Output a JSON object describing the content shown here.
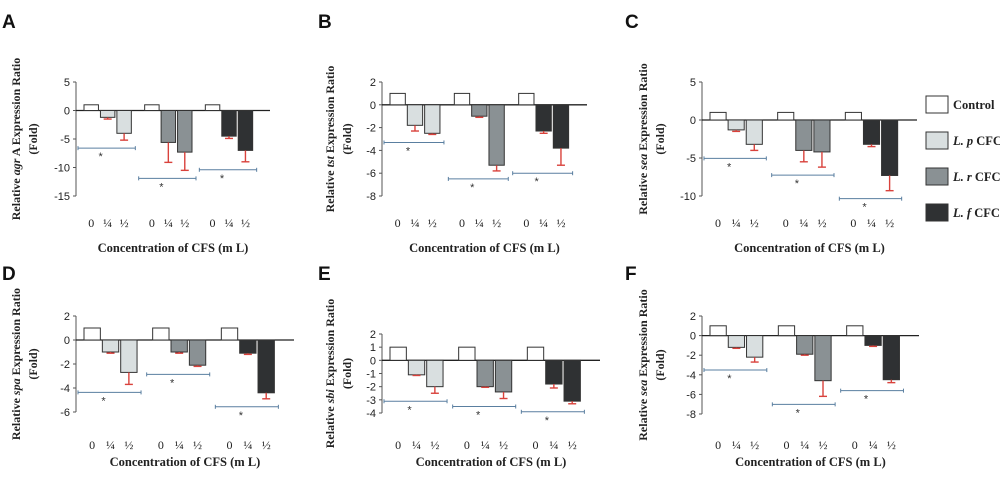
{
  "colors": {
    "Control": "#ffffff",
    "L. p CFC": "#d9dfe0",
    "L. r CFC": "#8a9194",
    "L. f CFC": "#2f3133",
    "error_bar": "#d9423c",
    "bracket": "#5a7fa0"
  },
  "legend": [
    {
      "label": "Control",
      "key": "Control"
    },
    {
      "label_italic": "L. p",
      "label_rest": " CFC",
      "key": "L. p CFC"
    },
    {
      "label_italic": "L. r",
      "label_rest": " CFC",
      "key": "L. r CFC"
    },
    {
      "label_italic": "L. f",
      "label_rest": " CFC",
      "key": "L. f CFC"
    }
  ],
  "chart_data": [
    {
      "type": "bar",
      "panel": "A",
      "ylabel_pre": "Relative ",
      "ylabel_gene": "agr",
      "ylabel_post": " A Expression Ratio",
      "ylabel_line2": "(Fold)",
      "xlabel": "Concentration of CFS (m L)",
      "ylim": [
        -15,
        5
      ],
      "yticks": [
        5,
        0,
        -5,
        -10,
        -15
      ],
      "x_tick_labels": [
        "0",
        "¼",
        "½"
      ],
      "groups": [
        {
          "series": "L. p CFC",
          "values": [
            1,
            -1.2,
            -4
          ],
          "errors": [
            0,
            0.3,
            1.2
          ]
        },
        {
          "series": "L. r CFC",
          "values": [
            1,
            -5.6,
            -7.3
          ],
          "errors": [
            0,
            3.5,
            3.2
          ]
        },
        {
          "series": "L. f CFC",
          "values": [
            1,
            -4.5,
            -7
          ],
          "errors": [
            0,
            0.4,
            2
          ]
        }
      ],
      "significance": [
        "*",
        "*",
        "*"
      ]
    },
    {
      "type": "bar",
      "panel": "B",
      "ylabel_pre": "Relative ",
      "ylabel_gene": "tst",
      "ylabel_post": " Expression Ratio",
      "ylabel_line2": "(Fold)",
      "xlabel": "Concentration of CFS (m L)",
      "ylim": [
        -8,
        2
      ],
      "yticks": [
        2,
        0,
        -2,
        -4,
        -6,
        -8
      ],
      "x_tick_labels": [
        "0",
        "¼",
        "½"
      ],
      "groups": [
        {
          "series": "L. p CFC",
          "values": [
            1,
            -1.8,
            -2.5
          ],
          "errors": [
            0,
            0.5,
            0.1
          ]
        },
        {
          "series": "L. r CFC",
          "values": [
            1,
            -1,
            -5.3
          ],
          "errors": [
            0,
            0.1,
            0.5
          ]
        },
        {
          "series": "L. f CFC",
          "values": [
            1,
            -2.3,
            -3.8
          ],
          "errors": [
            0,
            0.2,
            1.5
          ]
        }
      ],
      "significance": [
        "*",
        "*",
        "*"
      ]
    },
    {
      "type": "bar",
      "panel": "C",
      "ylabel_pre": "Relative ",
      "ylabel_gene": "sea",
      "ylabel_post": " Expression Ratio",
      "ylabel_line2": "(Fold)",
      "xlabel": "Concentration of CFS (m L)",
      "ylim": [
        -10,
        5
      ],
      "yticks": [
        5,
        0,
        -5,
        -10
      ],
      "x_tick_labels": [
        "0",
        "¼",
        "½"
      ],
      "groups": [
        {
          "series": "L. p CFC",
          "values": [
            1,
            -1.3,
            -3.2
          ],
          "errors": [
            0,
            0.2,
            0.8
          ]
        },
        {
          "series": "L. r CFC",
          "values": [
            1,
            -4,
            -4.2
          ],
          "errors": [
            0,
            1.5,
            2
          ]
        },
        {
          "series": "L. f CFC",
          "values": [
            1,
            -3.2,
            -7.3
          ],
          "errors": [
            0,
            0.3,
            2
          ]
        }
      ],
      "significance": [
        "*",
        "*",
        "*"
      ]
    },
    {
      "type": "bar",
      "panel": "D",
      "ylabel_pre": "Relative ",
      "ylabel_gene": "spa",
      "ylabel_post": "  Expression Ratio",
      "ylabel_line2": "(Fold)",
      "xlabel": "Concentration of CFS (m L)",
      "ylim": [
        -6,
        2
      ],
      "yticks": [
        2,
        0,
        -2,
        -4,
        -6
      ],
      "x_tick_labels": [
        "0",
        "¼",
        "½"
      ],
      "groups": [
        {
          "series": "L. p CFC",
          "values": [
            1,
            -1,
            -2.7
          ],
          "errors": [
            0,
            0.1,
            1
          ]
        },
        {
          "series": "L. r CFC",
          "values": [
            1,
            -1,
            -2.1
          ],
          "errors": [
            0,
            0.1,
            0.1
          ]
        },
        {
          "series": "L. f CFC",
          "values": [
            1,
            -1.1,
            -4.4
          ],
          "errors": [
            0,
            0.1,
            0.5
          ]
        }
      ],
      "significance": [
        "*",
        "*",
        "*"
      ]
    },
    {
      "type": "bar",
      "panel": "E",
      "ylabel_pre": "Relative ",
      "ylabel_gene": "sbi",
      "ylabel_post": " Expression Ratio",
      "ylabel_line2": "(Fold)",
      "xlabel": "Concentration of CFS (m L)",
      "ylim": [
        -4,
        2
      ],
      "yticks": [
        2,
        1,
        0,
        -1,
        -2,
        -3,
        -4
      ],
      "x_tick_labels": [
        "0",
        "¼",
        "½"
      ],
      "groups": [
        {
          "series": "L. p CFC",
          "values": [
            1,
            -1.1,
            -2
          ],
          "errors": [
            0,
            0.05,
            0.5
          ]
        },
        {
          "series": "L. r CFC",
          "values": [
            1,
            -2,
            -2.4
          ],
          "errors": [
            0,
            0.05,
            0.5
          ]
        },
        {
          "series": "L. f CFC",
          "values": [
            1,
            -1.8,
            -3.1
          ],
          "errors": [
            0,
            0.3,
            0.2
          ]
        }
      ],
      "significance": [
        "*",
        "*",
        "*"
      ]
    },
    {
      "type": "bar",
      "panel": "F",
      "ylabel_pre": "Relative ",
      "ylabel_gene": "sea",
      "ylabel_post": " Expression Ratio",
      "ylabel_line2": "(Fold)",
      "xlabel": "Concentration of CFS (m L)",
      "ylim": [
        -8,
        2
      ],
      "yticks": [
        2,
        0,
        -2,
        -4,
        -6,
        -8
      ],
      "x_tick_labels": [
        "0",
        "¼",
        "½"
      ],
      "groups": [
        {
          "series": "L. p CFC",
          "values": [
            1,
            -1.2,
            -2.2
          ],
          "errors": [
            0,
            0.1,
            0.5
          ]
        },
        {
          "series": "L. r CFC",
          "values": [
            1,
            -1.9,
            -4.6
          ],
          "errors": [
            0,
            0.1,
            1.6
          ]
        },
        {
          "series": "L. f CFC",
          "values": [
            1,
            -1,
            -4.5
          ],
          "errors": [
            0,
            0.1,
            0.3
          ]
        }
      ],
      "significance": [
        "*",
        "*",
        "*"
      ]
    }
  ]
}
